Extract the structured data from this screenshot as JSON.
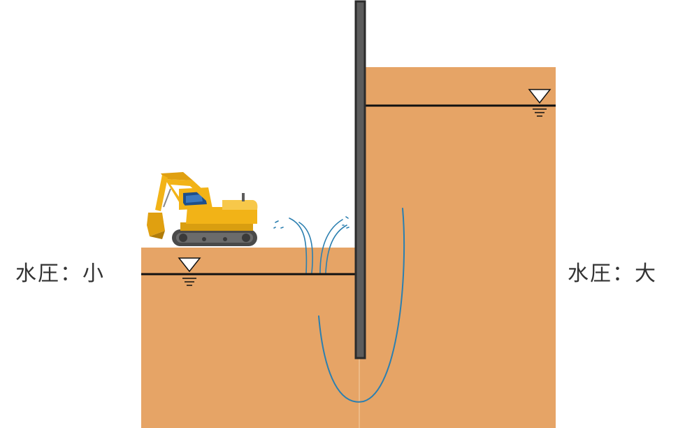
{
  "labels": {
    "left_pressure": "水圧：小",
    "right_pressure": "水圧：大"
  },
  "colors": {
    "soil": "#e6a466",
    "sheet_pile_fill": "#5c5c5c",
    "sheet_pile_edge": "#2b2b2b",
    "water_level_line": "#111111",
    "seepage_flow": "#2b7fb0",
    "excavator_body": "#f2b317",
    "excavator_track": "#4a4a4a",
    "text": "#333333"
  },
  "icons": {
    "left_water_level": "water-table-symbol",
    "right_water_level": "water-table-symbol",
    "excavator": "excavator-icon",
    "boiling": "water-spout-icon",
    "seepage": "seepage-flow-arrow"
  }
}
